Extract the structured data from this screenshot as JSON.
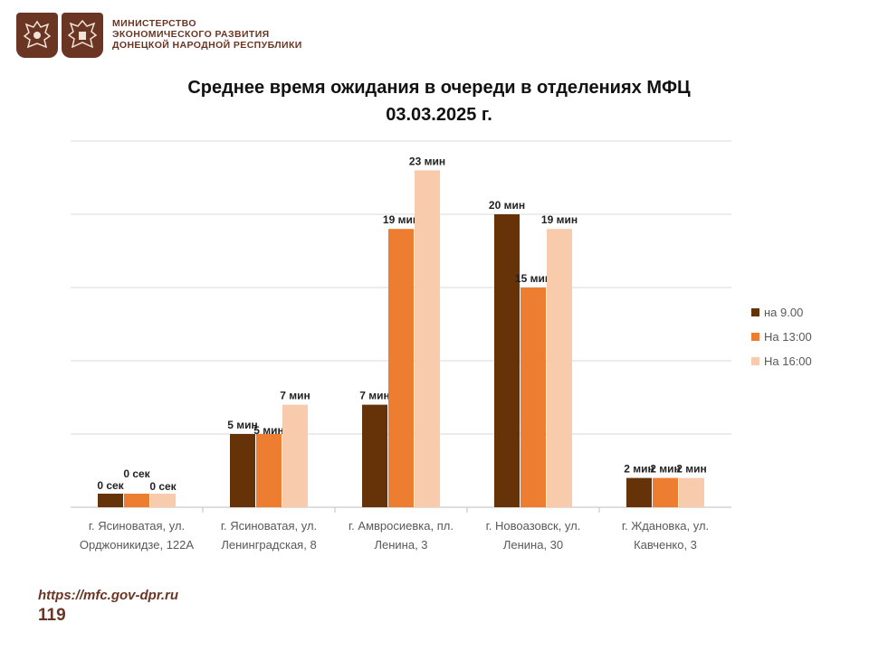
{
  "header": {
    "ministry_lines": [
      "МИНИСТЕРСТВО",
      "ЭКОНОМИЧЕСКОГО РАЗВИТИЯ",
      "ДОНЕЦКОЙ НАРОДНОЙ РЕСПУБЛИКИ"
    ],
    "emblem_color": "#6b3523"
  },
  "chart_data": {
    "type": "bar",
    "title_line1": "Среднее время ожидания в очереди в отделениях МФЦ",
    "title_line2": "03.03.2025   г.",
    "categories": [
      [
        "г. Ясиноватая, ул.",
        "Орджоникидзе, 122А"
      ],
      [
        "г. Ясиноватая, ул.",
        "Ленинградская, 8"
      ],
      [
        "г. Амвросиевка, пл.",
        "Ленина, 3"
      ],
      [
        "г. Новоазовск, ул.",
        "Ленина, 30"
      ],
      [
        "г. Ждановка, ул.",
        "Кавченко, 3"
      ]
    ],
    "series": [
      {
        "name": "на 9.00",
        "color": "#663208",
        "values": [
          0,
          5,
          7,
          20,
          2
        ],
        "labels": [
          "0 сек",
          "5 мин",
          "7 мин",
          "20 мин",
          "2 мин"
        ]
      },
      {
        "name": "На 13:00",
        "color": "#ed7d31",
        "values": [
          0,
          5,
          19,
          15,
          2
        ],
        "labels": [
          "0 сек",
          "5 мин",
          "19 мин",
          "15 мин",
          "2 мин"
        ]
      },
      {
        "name": "На 16:00",
        "color": "#f8cbad",
        "values": [
          0,
          7,
          23,
          19,
          2
        ],
        "labels": [
          "0 сек",
          "7 мин",
          "23 мин",
          "19 мин",
          "2 мин"
        ]
      }
    ],
    "ylim": [
      0,
      25
    ],
    "ygrid_step": 5,
    "grid": true,
    "legend_position": "right"
  },
  "footer": {
    "url": "https://mfc.gov-dpr.ru",
    "page_number": "119"
  }
}
